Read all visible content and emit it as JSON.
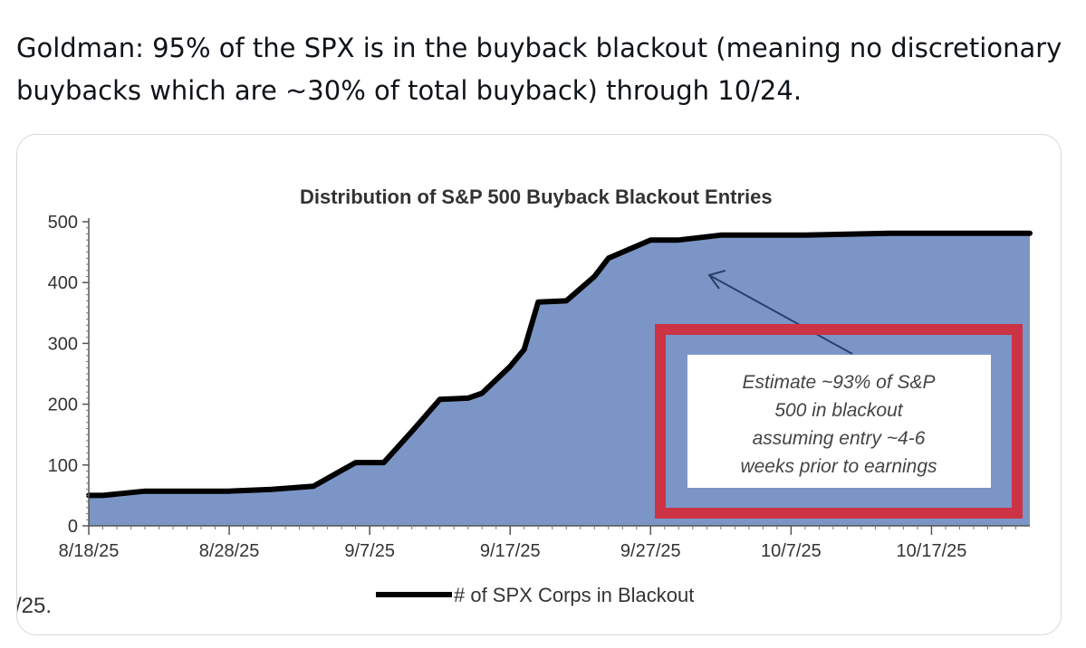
{
  "post": {
    "text": "Goldman: 95% of the SPX is in the buyback blackout (meaning no discretionary buybacks which are ~30% of total buyback) through 10/24."
  },
  "chart_data": {
    "type": "area",
    "title": "Distribution of S&P 500 Buyback Blackout Entries",
    "xlabel": "",
    "ylabel": "",
    "x_tick_labels": [
      "8/18/25",
      "8/28/25",
      "9/7/25",
      "9/17/25",
      "9/27/25",
      "10/7/25",
      "10/17/25"
    ],
    "y_tick_labels": [
      "0",
      "100",
      "200",
      "300",
      "400",
      "500"
    ],
    "ylim": [
      0,
      500
    ],
    "xlim": [
      "2025-08-18",
      "2025-10-24"
    ],
    "grid": false,
    "legend_position": "bottom",
    "series": [
      {
        "name": "# of SPX Corps in Blackout",
        "x": [
          "2025-08-18",
          "2025-08-19",
          "2025-08-22",
          "2025-08-25",
          "2025-08-28",
          "2025-08-31",
          "2025-09-03",
          "2025-09-06",
          "2025-09-08",
          "2025-09-10",
          "2025-09-12",
          "2025-09-14",
          "2025-09-15",
          "2025-09-17",
          "2025-09-18",
          "2025-09-19",
          "2025-09-21",
          "2025-09-23",
          "2025-09-24",
          "2025-09-27",
          "2025-09-29",
          "2025-10-02",
          "2025-10-08",
          "2025-10-14",
          "2025-10-24"
        ],
        "values": [
          50,
          50,
          57,
          57,
          57,
          60,
          65,
          104,
          104,
          155,
          208,
          210,
          218,
          262,
          290,
          368,
          370,
          410,
          440,
          470,
          470,
          478,
          478,
          481,
          481
        ]
      }
    ],
    "colors": {
      "area_fill": "#7b96c6",
      "line": "#000000",
      "annotation_box_border": "#cc3344",
      "arrow": "#2a3f6a"
    },
    "annotation": {
      "lines": [
        "Estimate ~93% of S&P",
        "500 in blackout",
        "assuming entry ~4-6",
        "weeks prior to earnings"
      ]
    }
  },
  "fragment": {
    "text": "/25."
  }
}
